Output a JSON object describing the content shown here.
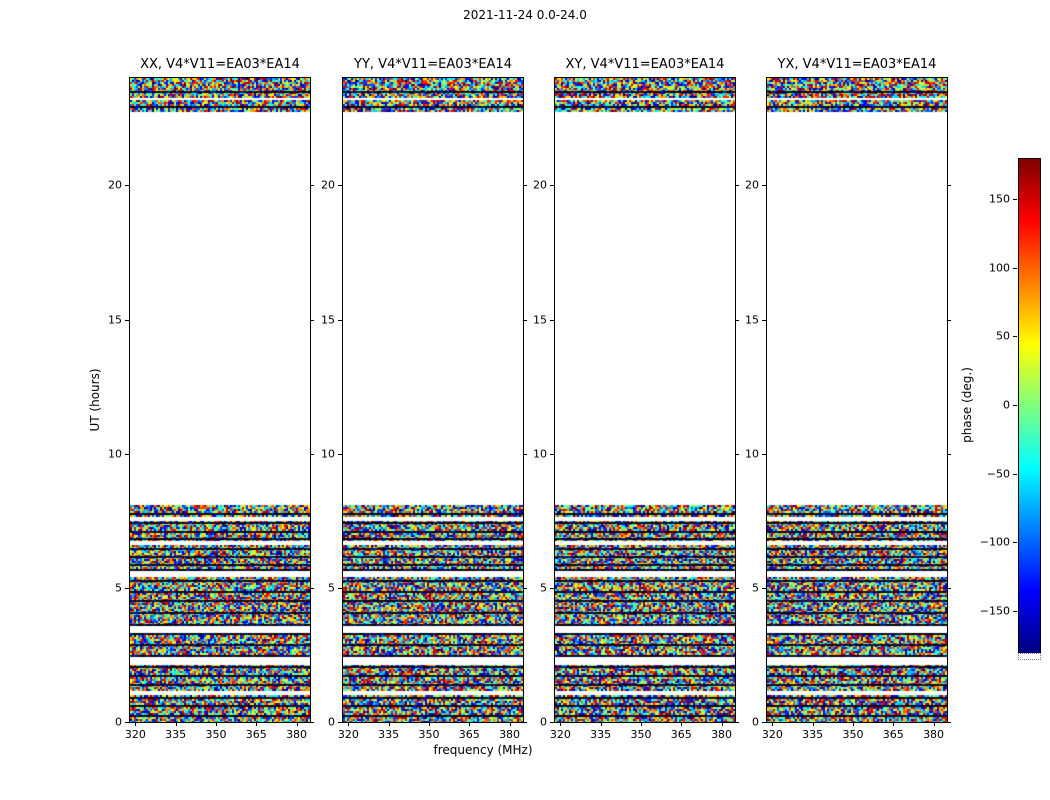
{
  "chart_data": {
    "type": "heatmap",
    "title": "2021-11-24 0.0-24.0",
    "panels": [
      {
        "pol": "XX",
        "title": "XX, V4*V11=EA03*EA14"
      },
      {
        "pol": "YY",
        "title": "YY, V4*V11=EA03*EA14"
      },
      {
        "pol": "XY",
        "title": "XY, V4*V11=EA03*EA14"
      },
      {
        "pol": "YX",
        "title": "YX, V4*V11=EA03*EA14"
      }
    ],
    "xlabel": "frequency (MHz)",
    "ylabel": "UT (hours)",
    "x_ticks": [
      320,
      335,
      350,
      365,
      380
    ],
    "y_ticks": [
      20,
      15,
      10,
      5,
      0
    ],
    "xlim": [
      318,
      385
    ],
    "ylim": [
      0,
      24
    ],
    "colorbar": {
      "label": "phase (deg.)",
      "ticks": [
        150,
        100,
        50,
        0,
        -50,
        -100,
        -150
      ],
      "vmin": -180,
      "vmax": 180,
      "colormap": "jet",
      "colormap_stops": [
        "#7f0000",
        "#ff0000",
        "#ff7f00",
        "#ffff00",
        "#7fff7f",
        "#00ffff",
        "#007fff",
        "#0000ff",
        "#00007f"
      ]
    },
    "coverage": {
      "note": "random phase noise (full -180..180 deg range) where data exists; white where no data",
      "noise_bands_hours": [
        [
          22.75,
          24.0
        ],
        [
          0.0,
          8.1
        ]
      ],
      "white_gaps_hours": [
        [
          23.17,
          23.27
        ],
        [
          7.52,
          7.62
        ],
        [
          6.62,
          6.72
        ],
        [
          5.37,
          5.67
        ],
        [
          3.34,
          3.62
        ],
        [
          2.14,
          2.44
        ],
        [
          1.04,
          1.12
        ],
        [
          0.54,
          0.6
        ]
      ],
      "dark_rows_hours": [
        23.5,
        22.95,
        7.8,
        7.45,
        7.1,
        6.85,
        6.5,
        6.2,
        5.9,
        5.72,
        5.3,
        4.9,
        4.55,
        4.1,
        3.66,
        3.3,
        2.9,
        2.5,
        2.1,
        1.75,
        1.4,
        0.95,
        0.65,
        0.25
      ]
    }
  }
}
